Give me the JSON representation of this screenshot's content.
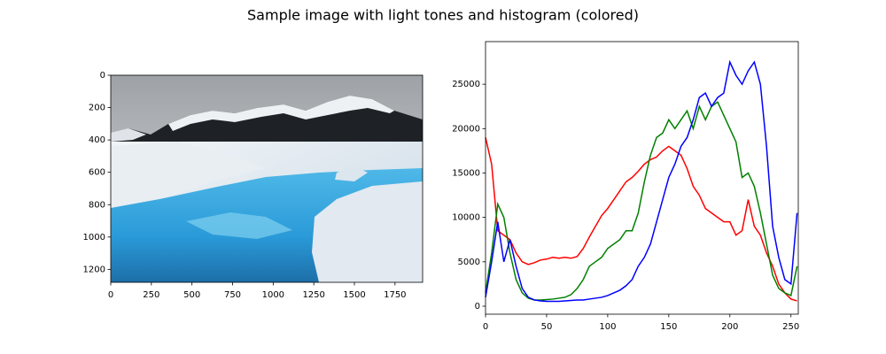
{
  "title": "Sample image with light tones and histogram (colored)",
  "chart_data": [
    {
      "type": "image",
      "xlim": [
        0,
        1920
      ],
      "ylim": [
        1280,
        0
      ],
      "xticks": [
        0,
        250,
        500,
        750,
        1000,
        1250,
        1500,
        1750
      ],
      "yticks": [
        0,
        200,
        400,
        600,
        800,
        1000,
        1200
      ]
    },
    {
      "type": "line",
      "x": [
        0,
        5,
        10,
        15,
        20,
        25,
        30,
        35,
        40,
        45,
        50,
        55,
        60,
        65,
        70,
        75,
        80,
        85,
        90,
        95,
        100,
        105,
        110,
        115,
        120,
        125,
        130,
        135,
        140,
        145,
        150,
        155,
        160,
        165,
        170,
        175,
        180,
        185,
        190,
        195,
        200,
        205,
        210,
        215,
        220,
        225,
        230,
        235,
        240,
        245,
        250,
        255
      ],
      "xlim": [
        0,
        256
      ],
      "ylim": [
        -900,
        29800
      ],
      "xticks": [
        0,
        50,
        100,
        150,
        200,
        250
      ],
      "yticks": [
        0,
        5000,
        10000,
        15000,
        20000,
        25000
      ],
      "series": [
        {
          "color": "red",
          "values": [
            19000,
            16000,
            8500,
            8000,
            7500,
            6000,
            5000,
            4700,
            4900,
            5200,
            5300,
            5500,
            5400,
            5500,
            5400,
            5600,
            6500,
            7800,
            9000,
            10200,
            11000,
            12000,
            13000,
            14000,
            14500,
            15200,
            16000,
            16500,
            16800,
            17500,
            18000,
            17500,
            17000,
            15500,
            13500,
            12500,
            11000,
            10500,
            10000,
            9500,
            9500,
            8000,
            8500,
            12000,
            9000,
            8000,
            6000,
            4500,
            2500,
            1500,
            800,
            600
          ]
        },
        {
          "color": "green",
          "values": [
            1500,
            6000,
            11500,
            10000,
            6000,
            3000,
            1500,
            900,
            700,
            700,
            750,
            800,
            900,
            1000,
            1300,
            2000,
            3000,
            4500,
            5000,
            5500,
            6500,
            7000,
            7500,
            8500,
            8500,
            10500,
            14000,
            17000,
            19000,
            19500,
            21000,
            20000,
            21000,
            22000,
            20000,
            22500,
            21000,
            22500,
            23000,
            21500,
            20000,
            18500,
            14500,
            15000,
            13500,
            10500,
            7000,
            3500,
            2000,
            1500,
            1200,
            4500
          ]
        },
        {
          "color": "blue",
          "values": [
            1000,
            5000,
            9500,
            5000,
            7500,
            4500,
            2000,
            1000,
            700,
            600,
            550,
            550,
            550,
            600,
            650,
            700,
            700,
            800,
            900,
            1000,
            1200,
            1500,
            1800,
            2300,
            3000,
            4500,
            5500,
            7000,
            9500,
            12000,
            14500,
            16000,
            18000,
            19000,
            21000,
            23500,
            24000,
            22500,
            23500,
            24000,
            27500,
            26000,
            25000,
            26500,
            27500,
            25000,
            18000,
            9000,
            5500,
            3000,
            2500,
            10500
          ]
        }
      ]
    }
  ]
}
